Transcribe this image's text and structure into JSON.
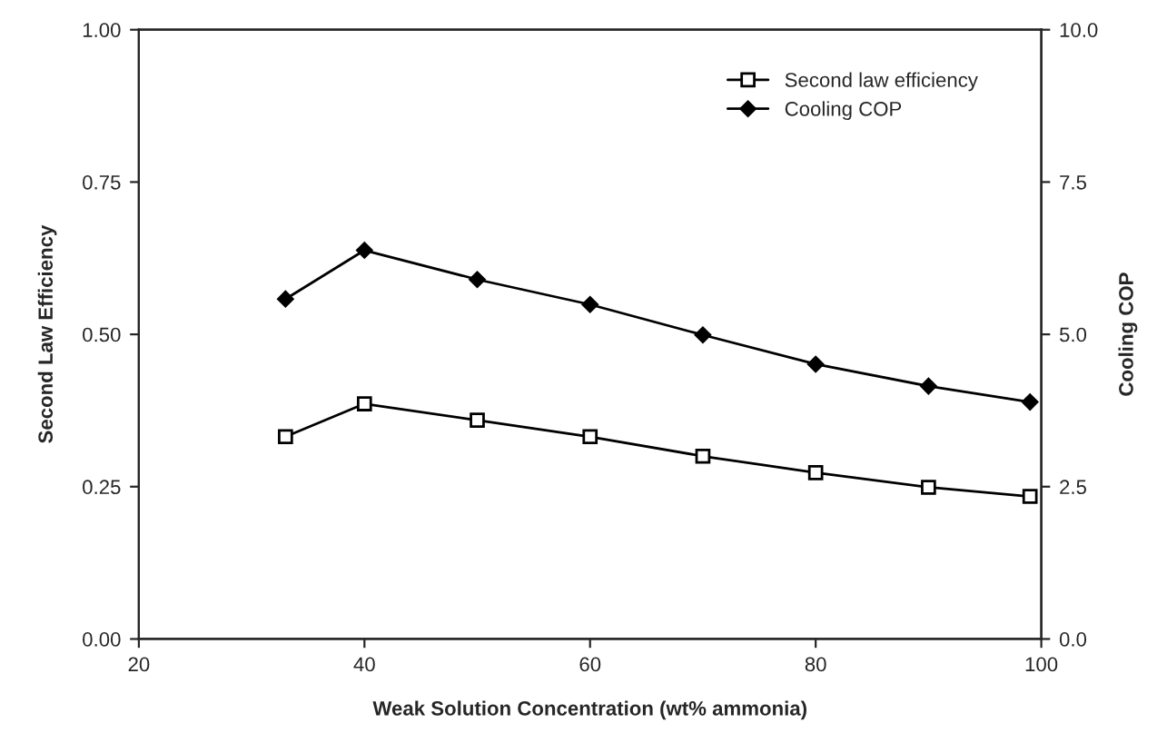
{
  "chart_data": {
    "type": "line",
    "xlabel": "Weak Solution Concentration (wt% ammonia)",
    "ylabel": "Second Law Efficiency",
    "y2label": "Cooling COP",
    "x": [
      33,
      40,
      50,
      60,
      70,
      80,
      90,
      99
    ],
    "series": [
      {
        "name": "Second law efficiency",
        "color": "#000000",
        "marker": "square",
        "values": [
          0.332,
          0.386,
          0.359,
          0.332,
          0.3,
          0.273,
          0.249,
          0.234
        ]
      },
      {
        "name": "Cooling COP",
        "color": "#000000",
        "marker": "diamond",
        "axis": "y2",
        "values": [
          5.58,
          6.38,
          5.9,
          5.49,
          4.99,
          4.51,
          4.15,
          3.89
        ]
      }
    ],
    "xlim": [
      20,
      100
    ],
    "xticks": [
      20,
      40,
      60,
      80,
      100
    ],
    "ylim": [
      0,
      1
    ],
    "yticks": [
      {
        "value": 0,
        "label": "0.00"
      },
      {
        "value": 0.25,
        "label": "0.25"
      },
      {
        "value": 0.5,
        "label": "0.50"
      },
      {
        "value": 0.75,
        "label": "0.75"
      },
      {
        "value": 1,
        "label": "1.00"
      }
    ],
    "y2lim": [
      0,
      10
    ],
    "y2ticks": [
      {
        "value": 0,
        "label": "0.0"
      },
      {
        "value": 2.5,
        "label": "2.5"
      },
      {
        "value": 5,
        "label": "5.0"
      },
      {
        "value": 7.5,
        "label": "7.5"
      },
      {
        "value": 10,
        "label": "10.0"
      }
    ],
    "legend": "top right",
    "grid": false,
    "line_style": "solid"
  }
}
